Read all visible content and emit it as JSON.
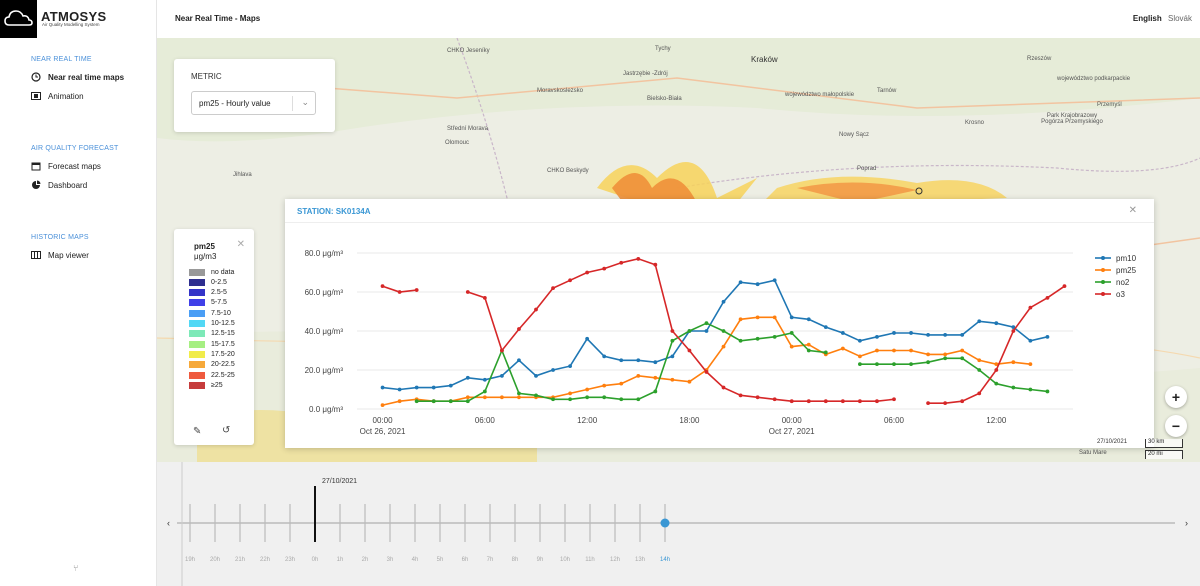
{
  "app": {
    "brand": "ATMOSYS",
    "tagline": "Air Quality Modelling System",
    "title": "Near Real Time - Maps",
    "lang_active": "English",
    "lang_other": "Slovák"
  },
  "sidebar": {
    "near_real_time": {
      "heading": "NEAR REAL TIME",
      "items": [
        {
          "label": "Near real time maps",
          "icon": "clock-icon"
        },
        {
          "label": "Animation",
          "icon": "film-icon"
        }
      ]
    },
    "forecast": {
      "heading": "AIR QUALITY FORECAST",
      "items": [
        {
          "label": "Forecast maps",
          "icon": "calendar-icon"
        },
        {
          "label": "Dashboard",
          "icon": "pie-chart-icon"
        }
      ]
    },
    "historic": {
      "heading": "HISTORIC MAPS",
      "items": [
        {
          "label": "Map viewer",
          "icon": "map-icon"
        }
      ]
    }
  },
  "metric": {
    "label": "METRIC",
    "value": "pm25 - Hourly value"
  },
  "legend": {
    "title": "pm25",
    "unit": "μg/m3",
    "items": [
      {
        "label": "no data",
        "color": "#999999"
      },
      {
        "label": "0-2.5",
        "color": "#2e2e8f"
      },
      {
        "label": "2.5-5",
        "color": "#3434c8"
      },
      {
        "label": "5-7.5",
        "color": "#4040e8"
      },
      {
        "label": "7.5-10",
        "color": "#4a9ef5"
      },
      {
        "label": "10-12.5",
        "color": "#52d8f5"
      },
      {
        "label": "12.5-15",
        "color": "#7de9b8"
      },
      {
        "label": "15-17.5",
        "color": "#a6ef82"
      },
      {
        "label": "17.5-20",
        "color": "#f1ec4a"
      },
      {
        "label": "20-22.5",
        "color": "#f6a93a"
      },
      {
        "label": "22.5-25",
        "color": "#ef5a3e"
      },
      {
        "label": "≥25",
        "color": "#c63c3c"
      }
    ]
  },
  "map_labels": [
    "CHKO Jeseníky",
    "Tychy",
    "Kraków",
    "Rzeszów",
    "Jastrzębie -Zdrój",
    "województwo podkarpackie",
    "Moravskoslezsko",
    "Bielsko-Biała",
    "województwo małopolskie",
    "Przemyśl",
    "Olomouc",
    "Střední Morava",
    "Nowy Sącz",
    "Tarnów",
    "Krosno",
    "Park Krajobrazowy Pogórza Przemyskiego",
    "CHKO Beskydy",
    "Jihlava",
    "Poprad",
    "Satu Mare"
  ],
  "station": {
    "title": "STATION: SK0134A"
  },
  "chart_data": {
    "type": "line",
    "title": "",
    "xlabel": "",
    "ylabel": "",
    "x_ticks": [
      "00:00",
      "06:00",
      "12:00",
      "18:00",
      "00:00",
      "06:00",
      "12:00"
    ],
    "x_tick_dates": [
      "Oct 26, 2021",
      "",
      "",
      "",
      "Oct 27, 2021",
      "",
      ""
    ],
    "y_ticks": [
      "0.0 μg/m³",
      "20.0 μg/m³",
      "40.0 μg/m³",
      "60.0 μg/m³",
      "80.0 μg/m³"
    ],
    "ylim": [
      0,
      80
    ],
    "x_hours_range": [
      -1.5,
      40.5
    ],
    "x_hours_note_units": "hours",
    "legend_position": "right",
    "series": [
      {
        "name": "pm10",
        "color": "#1f77b4",
        "points": [
          [
            0,
            11
          ],
          [
            1,
            10
          ],
          [
            2,
            11
          ],
          [
            3,
            11
          ],
          [
            4,
            12
          ],
          [
            5,
            16
          ],
          [
            6,
            15
          ],
          [
            7,
            17
          ],
          [
            8,
            25
          ],
          [
            9,
            17
          ],
          [
            10,
            20
          ],
          [
            11,
            22
          ],
          [
            12,
            36
          ],
          [
            13,
            27
          ],
          [
            14,
            25
          ],
          [
            15,
            25
          ],
          [
            16,
            24
          ],
          [
            17,
            27
          ],
          [
            18,
            40
          ],
          [
            19,
            40
          ],
          [
            20,
            55
          ],
          [
            21,
            65
          ],
          [
            22,
            64
          ],
          [
            23,
            66
          ],
          [
            24,
            47
          ],
          [
            25,
            46
          ],
          [
            26,
            42
          ],
          [
            27,
            39
          ],
          [
            28,
            35
          ],
          [
            29,
            37
          ],
          [
            30,
            39
          ],
          [
            31,
            39
          ],
          [
            32,
            38
          ],
          [
            33,
            38
          ],
          [
            34,
            38
          ],
          [
            35,
            45
          ],
          [
            36,
            44
          ],
          [
            37,
            42
          ],
          [
            38,
            35
          ],
          [
            39,
            37
          ]
        ]
      },
      {
        "name": "pm25",
        "color": "#ff7f0e",
        "points": [
          [
            0,
            2
          ],
          [
            1,
            4
          ],
          [
            2,
            5
          ],
          [
            3,
            4
          ],
          [
            4,
            4
          ],
          [
            5,
            6
          ],
          [
            6,
            6
          ],
          [
            7,
            6
          ],
          [
            8,
            6
          ],
          [
            9,
            6
          ],
          [
            10,
            6
          ],
          [
            11,
            8
          ],
          [
            12,
            10
          ],
          [
            13,
            12
          ],
          [
            14,
            13
          ],
          [
            15,
            17
          ],
          [
            16,
            16
          ],
          [
            17,
            15
          ],
          [
            18,
            14
          ],
          [
            19,
            20
          ],
          [
            20,
            32
          ],
          [
            21,
            46
          ],
          [
            22,
            47
          ],
          [
            23,
            47
          ],
          [
            24,
            32
          ],
          [
            25,
            33
          ],
          [
            26,
            28
          ],
          [
            27,
            31
          ],
          [
            28,
            27
          ],
          [
            29,
            30
          ],
          [
            30,
            30
          ],
          [
            31,
            30
          ],
          [
            32,
            28
          ],
          [
            33,
            28
          ],
          [
            34,
            30
          ],
          [
            35,
            25
          ],
          [
            36,
            23
          ],
          [
            37,
            24
          ],
          [
            38,
            23
          ]
        ]
      },
      {
        "name": "no2",
        "color": "#2ca02c",
        "points": [
          [
            2,
            4
          ],
          [
            3,
            4
          ],
          [
            4,
            4
          ],
          [
            5,
            4
          ],
          [
            6,
            9
          ],
          [
            7,
            30
          ],
          [
            8,
            8
          ],
          [
            9,
            7
          ],
          [
            10,
            5
          ],
          [
            11,
            5
          ],
          [
            12,
            6
          ],
          [
            13,
            6
          ],
          [
            14,
            5
          ],
          [
            15,
            5
          ],
          [
            16,
            9
          ],
          [
            17,
            35
          ],
          [
            18,
            40
          ],
          [
            19,
            44
          ],
          [
            20,
            40
          ],
          [
            21,
            35
          ],
          [
            22,
            36
          ],
          [
            23,
            37
          ],
          [
            24,
            39
          ],
          [
            25,
            30
          ],
          [
            26,
            29
          ],
          null,
          [
            28,
            23
          ],
          [
            29,
            23
          ],
          [
            30,
            23
          ],
          [
            31,
            23
          ],
          [
            32,
            24
          ],
          [
            33,
            26
          ],
          [
            34,
            26
          ],
          [
            35,
            20
          ],
          [
            36,
            13
          ],
          [
            37,
            11
          ],
          [
            38,
            10
          ],
          [
            39,
            9
          ]
        ]
      },
      {
        "name": "o3",
        "color": "#d62728",
        "points": [
          [
            0,
            63
          ],
          [
            1,
            60
          ],
          [
            2,
            61
          ],
          null,
          [
            5,
            60
          ],
          [
            6,
            57
          ],
          [
            7,
            30
          ],
          [
            8,
            41
          ],
          [
            9,
            51
          ],
          [
            10,
            62
          ],
          [
            11,
            66
          ],
          [
            12,
            70
          ],
          [
            13,
            72
          ],
          [
            14,
            75
          ],
          [
            15,
            77
          ],
          [
            16,
            74
          ],
          [
            17,
            40
          ],
          [
            18,
            30
          ],
          [
            19,
            19
          ],
          [
            20,
            11
          ],
          [
            21,
            7
          ],
          [
            22,
            6
          ],
          [
            23,
            5
          ],
          [
            24,
            4
          ],
          [
            25,
            4
          ],
          [
            26,
            4
          ],
          [
            27,
            4
          ],
          [
            28,
            4
          ],
          [
            29,
            4
          ],
          [
            30,
            5
          ],
          null,
          [
            32,
            3
          ],
          [
            33,
            3
          ],
          [
            34,
            4
          ],
          [
            35,
            8
          ],
          [
            36,
            20
          ],
          [
            37,
            40
          ],
          [
            38,
            52
          ],
          [
            39,
            57
          ],
          [
            40,
            63
          ]
        ]
      }
    ]
  },
  "map_footer": {
    "date": "27/10/2021",
    "scale_km": "30 km",
    "scale_mi": "20 mi"
  },
  "timeline": {
    "date": "27/10/2021",
    "hours": [
      "19h",
      "20h",
      "21h",
      "22h",
      "23h",
      "0h",
      "1h",
      "2h",
      "3h",
      "4h",
      "5h",
      "6h",
      "7h",
      "8h",
      "9h",
      "10h",
      "11h",
      "12h",
      "13h",
      "14h"
    ],
    "current": "14h"
  }
}
